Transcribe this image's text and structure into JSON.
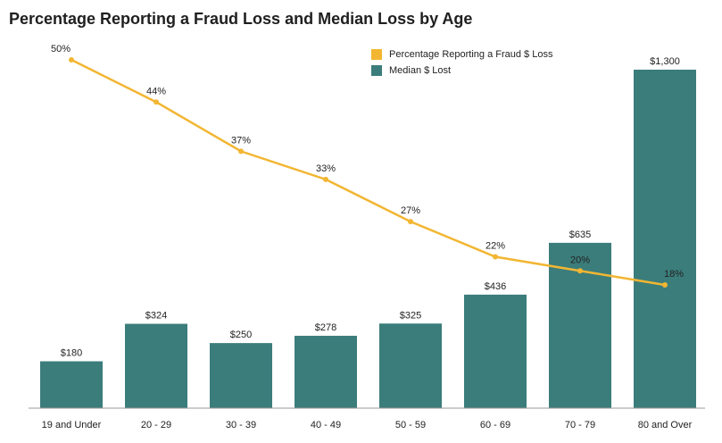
{
  "title": "Percentage Reporting a Fraud Loss and Median Loss by Age",
  "legend": {
    "line_label": "Percentage Reporting a Fraud $ Loss",
    "bar_label": "Median $ Lost"
  },
  "colors": {
    "bar": "#3b7d7b",
    "line": "#f2b632",
    "text": "#222222",
    "axis": "#9a9a9a"
  },
  "chart_data": {
    "type": "bar",
    "title": "Percentage Reporting a Fraud Loss and Median Loss by Age",
    "categories": [
      "19 and Under",
      "20 - 29",
      "30 - 39",
      "40 - 49",
      "50 - 59",
      "60 - 69",
      "70 - 79",
      "80 and Over"
    ],
    "series": [
      {
        "name": "Median $ Lost",
        "type": "bar",
        "values": [
          180,
          324,
          250,
          278,
          325,
          436,
          635,
          1300
        ],
        "labels": [
          "$180",
          "$324",
          "$250",
          "$278",
          "$325",
          "$436",
          "$635",
          "$1,300"
        ]
      },
      {
        "name": "Percentage Reporting a Fraud $ Loss",
        "type": "line",
        "values": [
          50,
          44,
          37,
          33,
          27,
          22,
          20,
          18
        ],
        "labels": [
          "50%",
          "44%",
          "37%",
          "33%",
          "27%",
          "22%",
          "20%",
          "18%"
        ]
      }
    ],
    "legend_position": "top-right"
  }
}
